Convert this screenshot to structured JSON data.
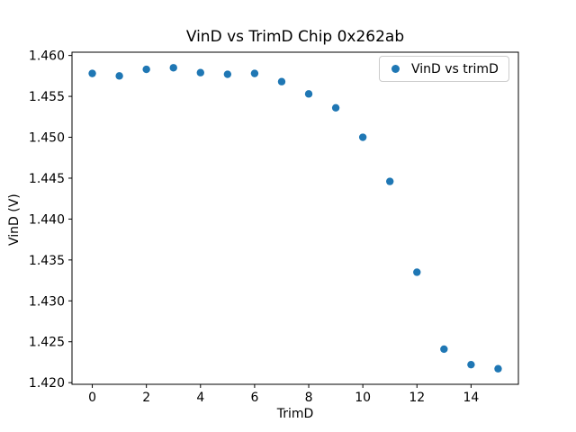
{
  "figure": {
    "background": "#ffffff"
  },
  "chart_data": {
    "type": "scatter",
    "title": "VinD vs TrimD Chip 0x262ab",
    "xlabel": "TrimD",
    "ylabel": "VinD (V)",
    "x": [
      0,
      1,
      2,
      3,
      4,
      5,
      6,
      7,
      8,
      9,
      10,
      11,
      12,
      13,
      14,
      15
    ],
    "y": [
      1.4578,
      1.4575,
      1.4583,
      1.4585,
      1.4579,
      1.4577,
      1.4578,
      1.4568,
      1.4553,
      1.4536,
      1.45,
      1.4446,
      1.4335,
      1.4241,
      1.4222,
      1.4217
    ],
    "xlim": [
      -0.75,
      15.75
    ],
    "ylim": [
      1.4198,
      1.4604
    ],
    "xticks": {
      "values": [
        0,
        2,
        4,
        6,
        8,
        10,
        12,
        14
      ],
      "labels": [
        "0",
        "2",
        "4",
        "6",
        "8",
        "10",
        "12",
        "14"
      ]
    },
    "yticks": {
      "values": [
        1.42,
        1.425,
        1.43,
        1.435,
        1.44,
        1.445,
        1.45,
        1.455,
        1.46
      ],
      "labels": [
        "1.420",
        "1.425",
        "1.430",
        "1.435",
        "1.440",
        "1.445",
        "1.450",
        "1.455",
        "1.460"
      ]
    },
    "grid": false,
    "axis_color": "#000000",
    "marker": {
      "shape": "circle",
      "color": "#1f77b4"
    },
    "legend": {
      "position": "upper right",
      "entries": [
        {
          "label": "VinD vs trimD",
          "marker_color": "#1f77b4"
        }
      ]
    }
  }
}
